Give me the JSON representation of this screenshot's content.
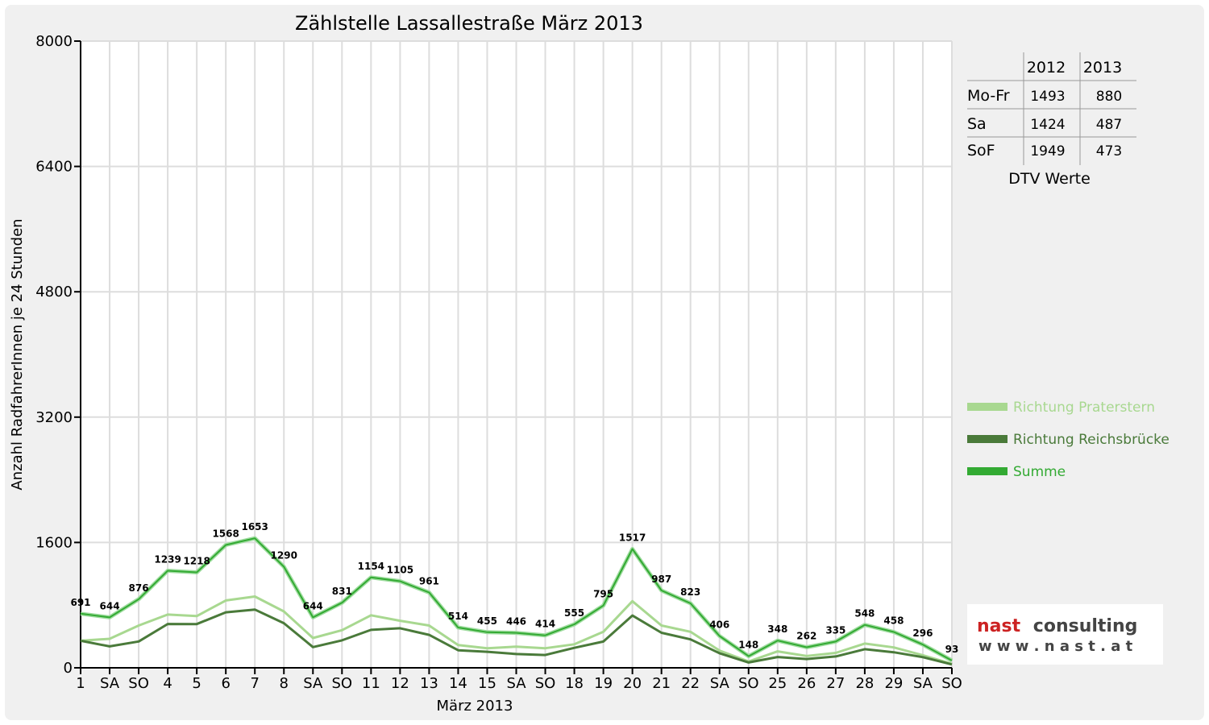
{
  "chart_data": {
    "type": "line",
    "title": "Zählstelle Lassallestraße März 2013",
    "xlabel": "März 2013",
    "ylabel": "Anzahl RadfahrerInnen je 24 Stunden",
    "ylim": [
      0,
      8000
    ],
    "yticks": [
      0,
      1600,
      3200,
      4800,
      6400,
      8000
    ],
    "grid": true,
    "legend_position": "right",
    "categories": [
      "1",
      "SA",
      "SO",
      "4",
      "5",
      "6",
      "7",
      "8",
      "SA",
      "SO",
      "11",
      "12",
      "13",
      "14",
      "15",
      "SA",
      "SO",
      "18",
      "19",
      "20",
      "21",
      "22",
      "SA",
      "SO",
      "25",
      "26",
      "27",
      "28",
      "29",
      "SA",
      "SO"
    ],
    "weekend_color": "#ff0000",
    "series": [
      {
        "name": "Richtung Praterstern",
        "color": "#a8d890",
        "values": [
          345,
          370,
          540,
          680,
          660,
          860,
          910,
          720,
          380,
          480,
          670,
          600,
          540,
          290,
          250,
          270,
          250,
          300,
          460,
          850,
          540,
          460,
          220,
          80,
          210,
          150,
          190,
          310,
          260,
          160,
          50
        ]
      },
      {
        "name": "Richtung Reichsbrücke",
        "color": "#4a7a3a",
        "values": [
          346,
          274,
          336,
          559,
          558,
          708,
          743,
          570,
          264,
          351,
          484,
          505,
          421,
          224,
          205,
          176,
          164,
          255,
          335,
          667,
          447,
          363,
          186,
          68,
          138,
          112,
          145,
          238,
          198,
          136,
          43
        ]
      },
      {
        "name": "Summe",
        "color": "#33aa33",
        "labels": true,
        "values": [
          691,
          644,
          876,
          1239,
          1218,
          1568,
          1653,
          1290,
          644,
          831,
          1154,
          1105,
          961,
          514,
          455,
          446,
          414,
          555,
          795,
          1517,
          987,
          823,
          406,
          148,
          348,
          262,
          335,
          548,
          458,
          296,
          93
        ]
      }
    ]
  },
  "dtv_table": {
    "headers": [
      "",
      "2012",
      "2013"
    ],
    "rows": [
      {
        "label": "Mo-Fr",
        "v2012": "1493",
        "v2013": "880"
      },
      {
        "label": "Sa",
        "v2012": "1424",
        "v2013": "487"
      },
      {
        "label": "SoF",
        "v2012": "1949",
        "v2013": "473"
      }
    ],
    "caption": "DTV Werte"
  },
  "logo": {
    "line1a": "nast",
    "line1b": "consulting",
    "line2": "w w w . n a s t . a t",
    "color_a": "#cc2222",
    "color_b": "#444444"
  }
}
